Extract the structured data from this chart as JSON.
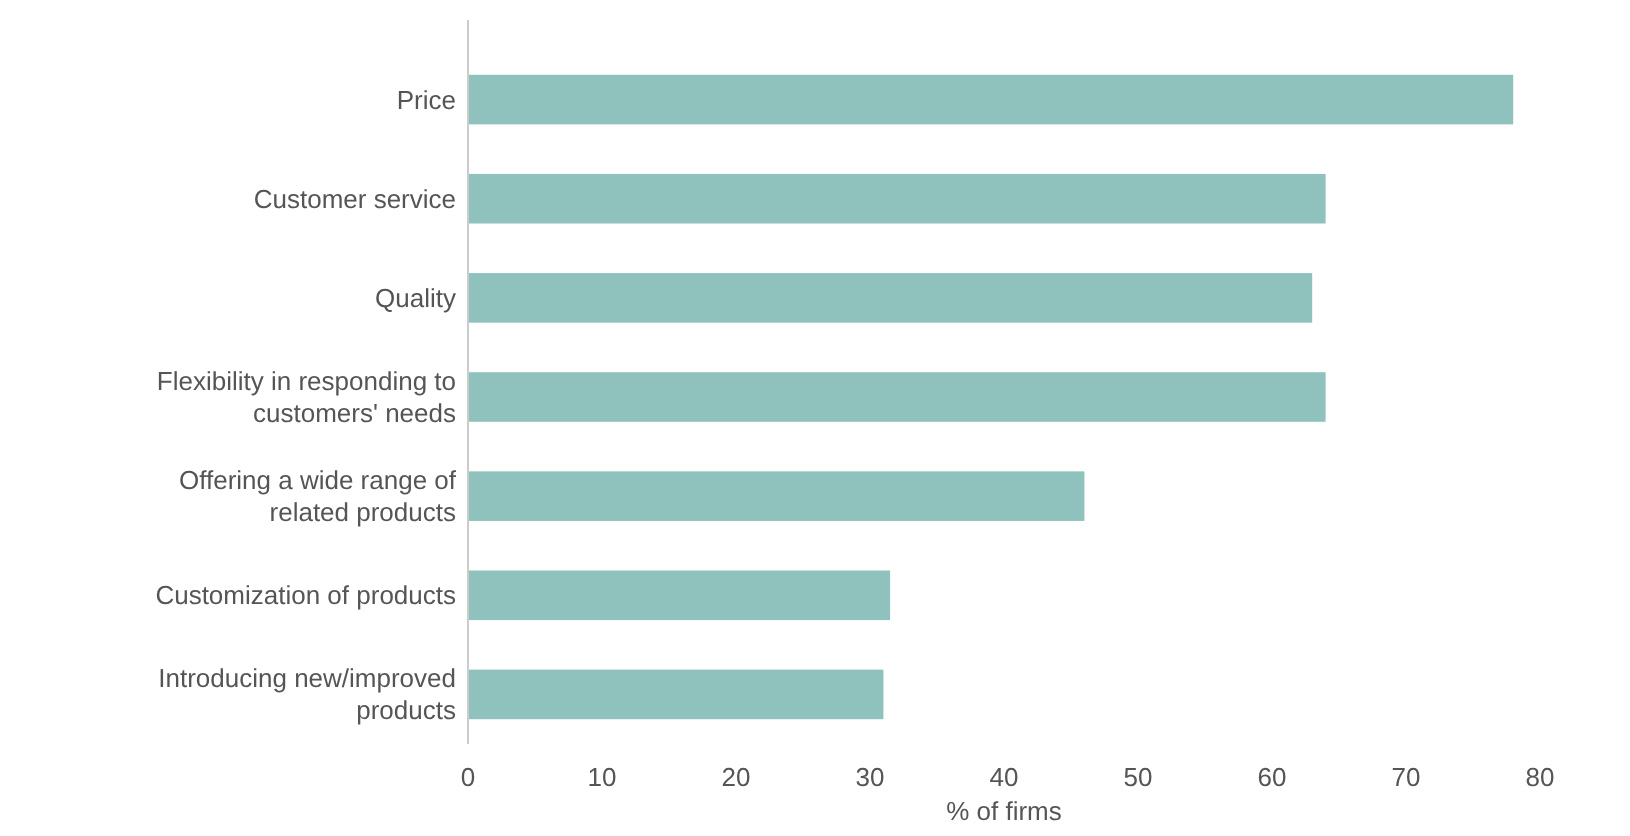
{
  "chart_data": {
    "type": "bar",
    "orientation": "horizontal",
    "xlabel": "% of firms",
    "categories": [
      "Price",
      "Customer service",
      "Quality",
      "Flexibility in responding to customers' needs",
      "Offering a wide range of related products",
      "Customization of products",
      "Introducing new/improved products"
    ],
    "values": [
      78,
      64,
      63,
      64,
      46,
      31.5,
      31
    ],
    "color": "#8fc2bd",
    "xlim": [
      0,
      80
    ],
    "xticks": [
      0,
      10,
      20,
      30,
      40,
      50,
      60,
      70,
      80
    ],
    "grid": false
  }
}
